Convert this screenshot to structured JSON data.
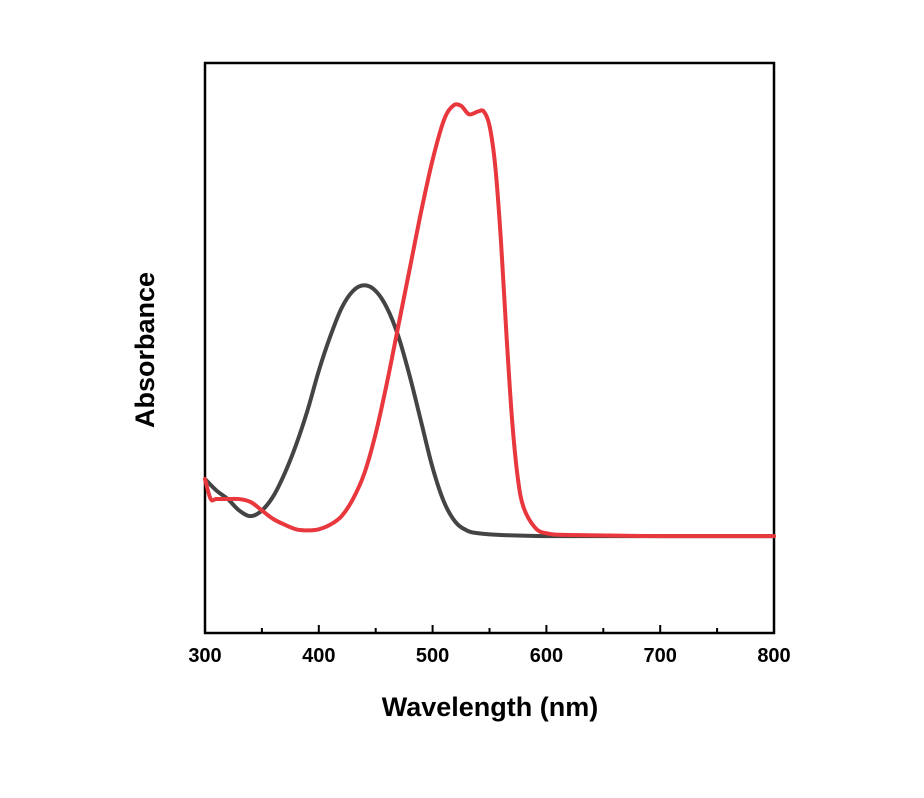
{
  "chart_data": {
    "type": "line",
    "title": "",
    "xlabel": "Wavelength (nm)",
    "ylabel": "Absorbance",
    "xlim": [
      300,
      800
    ],
    "ylim": [
      -0.17,
      0.83
    ],
    "x_ticks": [
      300,
      400,
      500,
      600,
      700,
      800
    ],
    "x_tick_labels": [
      "300",
      "400",
      "500",
      "600",
      "700",
      "800"
    ],
    "y_ticks_labeled": false,
    "grid": false,
    "legend": "none",
    "series": [
      {
        "color": "#444444",
        "points": [
          [
            300,
            0.1
          ],
          [
            310,
            0.08
          ],
          [
            320,
            0.065
          ],
          [
            330,
            0.045
          ],
          [
            340,
            0.035
          ],
          [
            350,
            0.045
          ],
          [
            360,
            0.07
          ],
          [
            370,
            0.11
          ],
          [
            380,
            0.16
          ],
          [
            390,
            0.22
          ],
          [
            400,
            0.29
          ],
          [
            410,
            0.35
          ],
          [
            420,
            0.4
          ],
          [
            430,
            0.43
          ],
          [
            440,
            0.44
          ],
          [
            450,
            0.43
          ],
          [
            460,
            0.4
          ],
          [
            470,
            0.35
          ],
          [
            480,
            0.28
          ],
          [
            490,
            0.2
          ],
          [
            500,
            0.12
          ],
          [
            510,
            0.06
          ],
          [
            520,
            0.025
          ],
          [
            530,
            0.01
          ],
          [
            540,
            0.005
          ],
          [
            560,
            0.002
          ],
          [
            600,
            0.0
          ],
          [
            700,
            0.0
          ],
          [
            800,
            0.0
          ]
        ]
      },
      {
        "color": "#e8373d",
        "points": [
          [
            300,
            0.1
          ],
          [
            305,
            0.065
          ],
          [
            310,
            0.065
          ],
          [
            320,
            0.065
          ],
          [
            330,
            0.065
          ],
          [
            340,
            0.06
          ],
          [
            350,
            0.045
          ],
          [
            360,
            0.03
          ],
          [
            370,
            0.02
          ],
          [
            380,
            0.012
          ],
          [
            390,
            0.01
          ],
          [
            400,
            0.012
          ],
          [
            410,
            0.02
          ],
          [
            420,
            0.035
          ],
          [
            430,
            0.065
          ],
          [
            440,
            0.11
          ],
          [
            450,
            0.18
          ],
          [
            460,
            0.27
          ],
          [
            470,
            0.37
          ],
          [
            480,
            0.47
          ],
          [
            490,
            0.57
          ],
          [
            500,
            0.66
          ],
          [
            510,
            0.73
          ],
          [
            518,
            0.755
          ],
          [
            525,
            0.755
          ],
          [
            532,
            0.74
          ],
          [
            540,
            0.745
          ],
          [
            545,
            0.745
          ],
          [
            550,
            0.72
          ],
          [
            555,
            0.65
          ],
          [
            560,
            0.52
          ],
          [
            565,
            0.35
          ],
          [
            570,
            0.2
          ],
          [
            575,
            0.1
          ],
          [
            580,
            0.05
          ],
          [
            590,
            0.015
          ],
          [
            600,
            0.005
          ],
          [
            620,
            0.002
          ],
          [
            700,
            0.0
          ],
          [
            800,
            0.0
          ]
        ]
      }
    ]
  }
}
